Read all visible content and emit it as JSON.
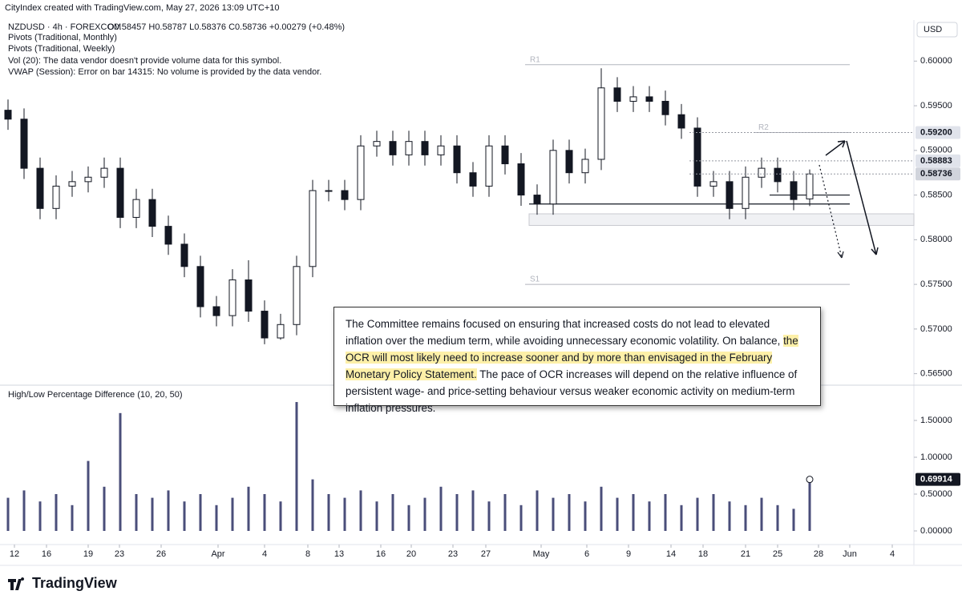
{
  "header": "CityIndex created with TradingView.com, May 27, 2026 13:09 UTC+10",
  "footer": "TradingView",
  "annotation": {
    "before": "The Committee remains focused on ensuring that increased costs do not lead to elevated inflation over the medium term, while avoiding unnecessary economic volatility. On balance, ",
    "highlight": "the OCR will most likely need to increase sooner and by more than envisaged in the February Monetary Policy Statement.",
    "after": " The pace of OCR increases will depend on the relative influence of persistent wage- and price-setting behaviour versus weaker economic activity on medium-term inflation pressures."
  },
  "chart_data": [
    {
      "type": "candlestick",
      "symbol": "NZDUSD · 4h · FOREXCOM",
      "ohlc": "O0.58457 H0.58787 L0.58376 C0.58736 +0.00279 (+0.48%)",
      "legend": [
        "Pivots (Traditional, Monthly)",
        "Pivots (Traditional, Weekly)",
        "Vol (20): The data vendor doesn't provide volume data for this symbol.",
        "VWAP (Session): Error on bar 14315: No volume is provided by the data vendor."
      ],
      "currency": "USD",
      "up_color": "#ffffff",
      "down_color": "#131722",
      "x": [
        1,
        3,
        5,
        7,
        9,
        11,
        13,
        15,
        17,
        19,
        21,
        23,
        25,
        27,
        29,
        31,
        33,
        35,
        37,
        39,
        41,
        43,
        45,
        47,
        49,
        51,
        53,
        55,
        57,
        59,
        61,
        63,
        65,
        67,
        69,
        71,
        73,
        75,
        77,
        79,
        81,
        83,
        85,
        87,
        89,
        91,
        93,
        95,
        97,
        99,
        101
      ],
      "open": [
        0.5945,
        0.5935,
        0.588,
        0.5835,
        0.586,
        0.5865,
        0.587,
        0.588,
        0.5825,
        0.5845,
        0.5815,
        0.5795,
        0.577,
        0.5725,
        0.5715,
        0.5755,
        0.572,
        0.569,
        0.5705,
        0.577,
        0.5855,
        0.5855,
        0.5845,
        0.5905,
        0.591,
        0.5895,
        0.591,
        0.5895,
        0.5905,
        0.5875,
        0.586,
        0.5905,
        0.5885,
        0.585,
        0.584,
        0.59,
        0.5875,
        0.589,
        0.597,
        0.5955,
        0.596,
        0.5955,
        0.594,
        0.5925,
        0.586,
        0.5865,
        0.5835,
        0.587,
        0.588,
        0.5865,
        0.58457
      ],
      "high": [
        0.5957,
        0.5947,
        0.5892,
        0.5872,
        0.5877,
        0.5882,
        0.5892,
        0.5892,
        0.5857,
        0.5857,
        0.5827,
        0.5807,
        0.5782,
        0.5737,
        0.5767,
        0.5777,
        0.5732,
        0.5717,
        0.5782,
        0.5867,
        0.5867,
        0.5867,
        0.5917,
        0.5922,
        0.5922,
        0.5922,
        0.5922,
        0.5917,
        0.5917,
        0.5887,
        0.5917,
        0.5917,
        0.5897,
        0.5862,
        0.5912,
        0.5912,
        0.5902,
        0.5992,
        0.5982,
        0.5972,
        0.5972,
        0.5967,
        0.5952,
        0.5937,
        0.5877,
        0.5877,
        0.5882,
        0.5892,
        0.5892,
        0.5877,
        0.58787
      ],
      "low": [
        0.5923,
        0.5868,
        0.5823,
        0.5823,
        0.5848,
        0.5853,
        0.5858,
        0.5813,
        0.5813,
        0.5803,
        0.5783,
        0.5758,
        0.5713,
        0.5703,
        0.5703,
        0.5708,
        0.5683,
        0.5688,
        0.5693,
        0.5758,
        0.5843,
        0.5833,
        0.5833,
        0.5893,
        0.5883,
        0.5883,
        0.5883,
        0.5883,
        0.5863,
        0.5848,
        0.5848,
        0.5873,
        0.5838,
        0.5828,
        0.5828,
        0.5863,
        0.5863,
        0.5878,
        0.5943,
        0.5943,
        0.5943,
        0.5928,
        0.5913,
        0.5848,
        0.5848,
        0.5823,
        0.5823,
        0.5858,
        0.5853,
        0.5833,
        0.58376
      ],
      "close": [
        0.5935,
        0.588,
        0.5835,
        0.586,
        0.5865,
        0.587,
        0.588,
        0.5825,
        0.5845,
        0.5815,
        0.5795,
        0.577,
        0.5725,
        0.5715,
        0.5755,
        0.572,
        0.569,
        0.5705,
        0.577,
        0.5855,
        0.5855,
        0.5845,
        0.5905,
        0.591,
        0.5895,
        0.591,
        0.5895,
        0.5905,
        0.5875,
        0.586,
        0.5905,
        0.5885,
        0.585,
        0.584,
        0.59,
        0.5875,
        0.589,
        0.597,
        0.5955,
        0.596,
        0.5955,
        0.594,
        0.5925,
        0.586,
        0.5865,
        0.5835,
        0.587,
        0.588,
        0.5865,
        0.5845,
        0.58736
      ],
      "xlim": [
        0,
        114
      ],
      "xticks": [
        {
          "value": 1.8,
          "label": "12"
        },
        {
          "value": 5.8,
          "label": "16"
        },
        {
          "value": 11,
          "label": "19"
        },
        {
          "value": 14.9,
          "label": "23"
        },
        {
          "value": 20.1,
          "label": "26"
        },
        {
          "value": 27.2,
          "label": "Apr"
        },
        {
          "value": 33,
          "label": "4"
        },
        {
          "value": 38.4,
          "label": "8"
        },
        {
          "value": 42.3,
          "label": "13"
        },
        {
          "value": 47.5,
          "label": "16"
        },
        {
          "value": 51.3,
          "label": "20"
        },
        {
          "value": 56.5,
          "label": "23"
        },
        {
          "value": 60.6,
          "label": "27"
        },
        {
          "value": 67.5,
          "label": "May"
        },
        {
          "value": 73.2,
          "label": "6"
        },
        {
          "value": 78.4,
          "label": "9"
        },
        {
          "value": 83.7,
          "label": "14"
        },
        {
          "value": 87.7,
          "label": "18"
        },
        {
          "value": 93,
          "label": "21"
        },
        {
          "value": 97,
          "label": "25"
        },
        {
          "value": 102.1,
          "label": "28"
        },
        {
          "value": 106,
          "label": "Jun"
        },
        {
          "value": 111.3,
          "label": "4"
        }
      ],
      "ylim": [
        0.5638,
        0.6046
      ],
      "yticks": [
        {
          "value": 0.565,
          "label": "0.56500"
        },
        {
          "value": 0.57,
          "label": "0.57000"
        },
        {
          "value": 0.575,
          "label": "0.57500"
        },
        {
          "value": 0.58,
          "label": "0.58000"
        },
        {
          "value": 0.585,
          "label": "0.58500"
        },
        {
          "value": 0.59,
          "label": "0.59000"
        },
        {
          "value": 0.595,
          "label": "0.59500"
        },
        {
          "value": 0.6,
          "label": "0.60000"
        }
      ],
      "price_labels": [
        {
          "value": 0.592,
          "label": "0.59200",
          "color": "#e0e3eb"
        },
        {
          "value": 0.58883,
          "label": "0.58883",
          "color": "#e0e3eb"
        },
        {
          "value": 0.58736,
          "label": "0.58736",
          "color": "#d1d4dc"
        }
      ],
      "pivots": [
        {
          "label": "R1",
          "value": 0.5996,
          "x_start": 65.5,
          "x_end": 106
        },
        {
          "label": "S1",
          "value": 0.575,
          "x_start": 65.5,
          "x_end": 106
        },
        {
          "label": "R2",
          "value": 0.592,
          "x_start": 94,
          "x_end": 106
        }
      ],
      "levels": [
        {
          "value": 0.584,
          "x_start": 66,
          "x_end": 106
        },
        {
          "value": 0.585,
          "x_start": 96,
          "x_end": 106
        }
      ],
      "zone": {
        "low": 0.5816,
        "high": 0.5829,
        "x_start": 66,
        "x_end": 114
      }
    },
    {
      "type": "bar",
      "title": "High/Low Percentage Difference (10, 20, 50)",
      "color": "#4a4e7a",
      "values": [
        0.45,
        0.55,
        0.4,
        0.5,
        0.35,
        0.95,
        0.6,
        1.6,
        0.5,
        0.45,
        0.55,
        0.4,
        0.5,
        0.35,
        0.45,
        0.6,
        0.5,
        0.4,
        1.75,
        0.7,
        0.5,
        0.45,
        0.55,
        0.4,
        0.5,
        0.35,
        0.45,
        0.6,
        0.5,
        0.55,
        0.4,
        0.5,
        0.35,
        0.55,
        0.45,
        0.5,
        0.4,
        0.6,
        0.45,
        0.5,
        0.4,
        0.5,
        0.35,
        0.45,
        0.5,
        0.4,
        0.35,
        0.45,
        0.35,
        0.3,
        0.69914
      ],
      "last_label": "0.69914",
      "ylim": [
        -0.185,
        1.957
      ],
      "yticks": [
        {
          "value": 0,
          "label": "0.00000"
        },
        {
          "value": 0.5,
          "label": "0.50000"
        },
        {
          "value": 1,
          "label": "1.00000"
        },
        {
          "value": 1.5,
          "label": "1.50000"
        }
      ]
    }
  ]
}
